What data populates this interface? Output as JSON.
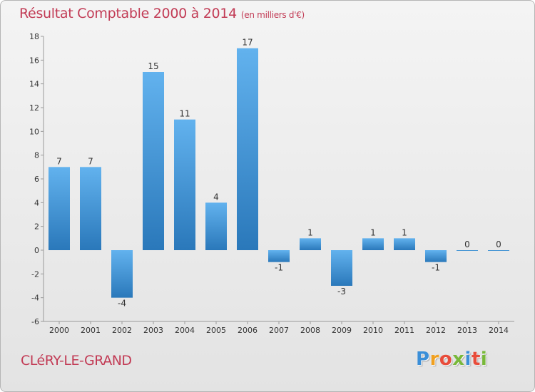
{
  "chart_data": {
    "type": "bar",
    "title": "Résultat Comptable 2000 à 2014",
    "unit": "(en milliers d'€)",
    "categories": [
      "2000",
      "2001",
      "2002",
      "2003",
      "2004",
      "2005",
      "2006",
      "2007",
      "2008",
      "2009",
      "2010",
      "2011",
      "2012",
      "2013",
      "2014"
    ],
    "values": [
      7,
      7,
      -4,
      15,
      11,
      4,
      17,
      -1,
      1,
      -3,
      1,
      1,
      -1,
      0,
      0
    ],
    "value_labels": [
      "7",
      "7",
      "-4",
      "15",
      "11",
      "4",
      "17",
      "-1",
      "1",
      "-3",
      "1",
      "1",
      "-1",
      "0",
      "0"
    ],
    "ylim": [
      -6,
      18
    ],
    "yticks": [
      -6,
      -4,
      -2,
      0,
      2,
      4,
      6,
      8,
      10,
      12,
      14,
      16,
      18
    ],
    "grid": false,
    "xlabel": "",
    "ylabel": ""
  },
  "footer": {
    "town": "CLéRY-LE-GRAND",
    "logo_letters": [
      "P",
      "r",
      "o",
      "x",
      "i",
      "t",
      "i"
    ]
  },
  "colors": {
    "title": "#c23b55",
    "bar_light": "#62b2ee",
    "bar_dark": "#2a78ba",
    "axis": "#9a9a9a",
    "logo": [
      "#3b8fd8",
      "#f0a020",
      "#e84c3a",
      "#78b83a",
      "#3b8fd8",
      "#e84c3a",
      "#78b83a"
    ]
  }
}
